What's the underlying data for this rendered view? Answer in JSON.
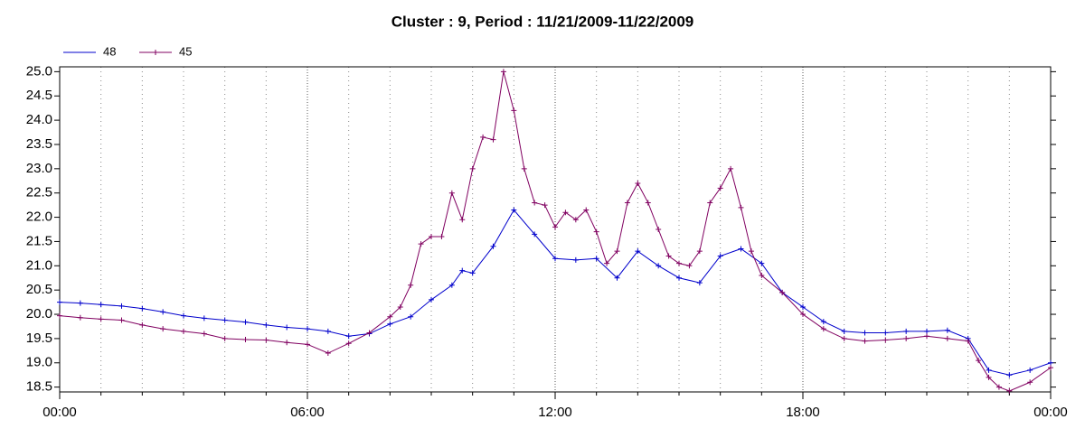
{
  "chart_data": {
    "type": "line",
    "title": "Cluster : 9, Period : 11/21/2009-11/22/2009",
    "xlim": [
      0,
      24
    ],
    "xticks": [
      {
        "value": 0,
        "label": "00:00"
      },
      {
        "value": 6,
        "label": "06:00"
      },
      {
        "value": 12,
        "label": "12:00"
      },
      {
        "value": 18,
        "label": "18:00"
      },
      {
        "value": 24,
        "label": "00:00"
      }
    ],
    "xminorticks": [
      1,
      2,
      3,
      4,
      5,
      7,
      8,
      9,
      10,
      11,
      13,
      14,
      15,
      16,
      17,
      19,
      20,
      21,
      22,
      23
    ],
    "ylim": [
      18.4,
      25.1
    ],
    "yticks": [
      {
        "value": 18.5,
        "label": "18.5"
      },
      {
        "value": 19,
        "label": "19.0"
      },
      {
        "value": 19.5,
        "label": "19.5"
      },
      {
        "value": 20,
        "label": "20.0"
      },
      {
        "value": 20.5,
        "label": "20.5"
      },
      {
        "value": 21,
        "label": "21.0"
      },
      {
        "value": 21.5,
        "label": "21.5"
      },
      {
        "value": 22,
        "label": "22.0"
      },
      {
        "value": 22.5,
        "label": "22.5"
      },
      {
        "value": 23,
        "label": "23.0"
      },
      {
        "value": 23.5,
        "label": "23.5"
      },
      {
        "value": 24,
        "label": "24.0"
      },
      {
        "value": 24.5,
        "label": "24.5"
      },
      {
        "value": 25,
        "label": "25.0"
      }
    ],
    "grid": "x",
    "legend": "top-left",
    "series": [
      {
        "name": "48",
        "color": "#0000cc",
        "x": [
          0,
          0.5,
          1,
          1.5,
          2,
          2.5,
          3,
          3.5,
          4,
          4.5,
          5,
          5.5,
          6,
          6.5,
          7,
          7.5,
          8,
          8.5,
          9,
          9.5,
          9.75,
          10,
          10.5,
          11,
          11.5,
          12,
          12.5,
          13,
          13.5,
          14,
          14.5,
          15,
          15.5,
          16,
          16.5,
          17,
          17.5,
          18,
          18.5,
          19,
          19.5,
          20,
          20.5,
          21,
          21.5,
          22,
          22.5,
          23,
          23.5,
          24
        ],
        "values": [
          20.25,
          20.23,
          20.2,
          20.17,
          20.12,
          20.05,
          19.97,
          19.92,
          19.88,
          19.84,
          19.78,
          19.73,
          19.7,
          19.65,
          19.55,
          19.6,
          19.8,
          19.95,
          20.3,
          20.6,
          20.9,
          20.85,
          21.4,
          22.15,
          21.65,
          21.15,
          21.12,
          21.15,
          20.75,
          21.3,
          21.0,
          20.75,
          20.65,
          21.2,
          21.35,
          21.05,
          20.45,
          20.15,
          19.85,
          19.65,
          19.62,
          19.62,
          19.65,
          19.65,
          19.67,
          19.5,
          18.85,
          18.75,
          18.85,
          19.0
        ]
      },
      {
        "name": "45",
        "color": "#800060",
        "x": [
          0,
          0.5,
          1,
          1.5,
          2,
          2.5,
          3,
          3.5,
          4,
          4.5,
          5,
          5.5,
          6,
          6.5,
          7,
          7.5,
          8,
          8.25,
          8.5,
          8.75,
          9,
          9.25,
          9.5,
          9.75,
          10,
          10.25,
          10.5,
          10.75,
          11,
          11.25,
          11.5,
          11.75,
          12,
          12.25,
          12.5,
          12.75,
          13,
          13.25,
          13.5,
          13.75,
          14,
          14.25,
          14.5,
          14.75,
          15,
          15.25,
          15.5,
          15.75,
          16,
          16.25,
          16.5,
          16.75,
          17,
          17.5,
          18,
          18.5,
          19,
          19.5,
          20,
          20.5,
          21,
          21.5,
          22,
          22.25,
          22.5,
          22.75,
          23,
          23.5,
          24
        ],
        "values": [
          19.97,
          19.93,
          19.9,
          19.88,
          19.78,
          19.7,
          19.65,
          19.6,
          19.5,
          19.48,
          19.47,
          19.42,
          19.38,
          19.2,
          19.4,
          19.62,
          19.95,
          20.15,
          20.6,
          21.45,
          21.6,
          21.6,
          22.5,
          21.95,
          23.0,
          23.65,
          23.6,
          25.0,
          24.2,
          23.0,
          22.3,
          22.25,
          21.8,
          22.1,
          21.95,
          22.15,
          21.7,
          21.05,
          21.3,
          22.3,
          22.7,
          22.3,
          21.75,
          21.2,
          21.05,
          21.0,
          21.3,
          22.3,
          22.6,
          23.0,
          22.2,
          21.3,
          20.8,
          20.45,
          20.0,
          19.7,
          19.5,
          19.45,
          19.47,
          19.5,
          19.55,
          19.5,
          19.45,
          19.05,
          18.7,
          18.5,
          18.42,
          18.6,
          18.9
        ]
      }
    ]
  }
}
